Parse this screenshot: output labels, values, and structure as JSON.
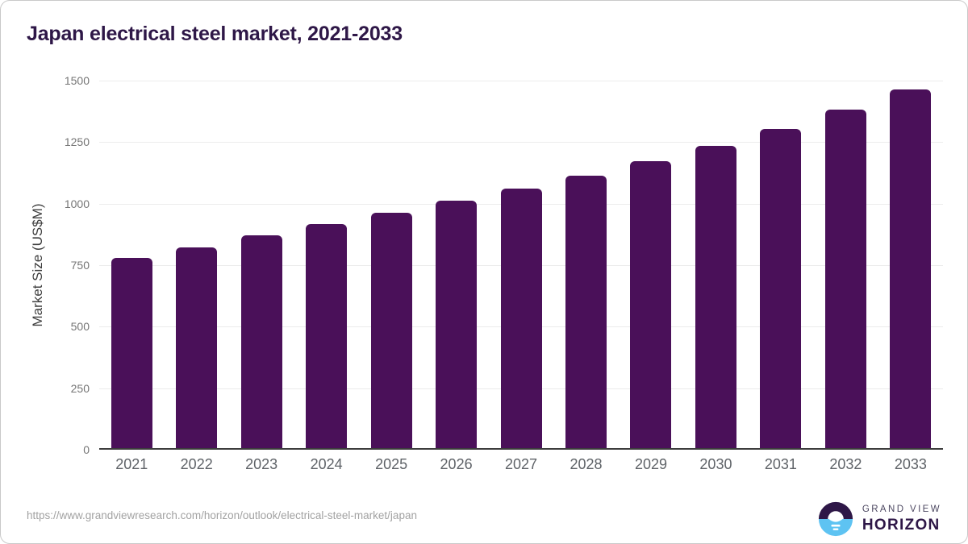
{
  "title": "Japan electrical steel market, 2021-2033",
  "chart_data": {
    "type": "bar",
    "title": "Japan electrical steel market, 2021-2033",
    "categories": [
      "2021",
      "2022",
      "2023",
      "2024",
      "2025",
      "2026",
      "2027",
      "2028",
      "2029",
      "2030",
      "2031",
      "2032",
      "2033"
    ],
    "values": [
      772,
      817,
      865,
      909,
      955,
      1005,
      1055,
      1108,
      1166,
      1228,
      1296,
      1375,
      1458
    ],
    "xlabel": "",
    "ylabel": "Market Size (US$M)",
    "ylim": [
      0,
      1500
    ],
    "yticks": [
      0,
      250,
      500,
      750,
      1000,
      1250,
      1500
    ],
    "grid": true,
    "legend": "none",
    "bar_color": "#4a1059"
  },
  "footer": {
    "source_url": "https://www.grandviewresearch.com/horizon/outlook/electrical-steel-market/japan",
    "logo": {
      "line1": "GRAND VIEW",
      "line2": "HORIZON"
    }
  },
  "colors": {
    "bar": "#4a1059",
    "title_text": "#2e1747",
    "gridline": "#ececec",
    "axis_line": "#3d3d3d",
    "y_tick_text": "#757575",
    "x_tick_text": "#5f6368",
    "url_text": "#a2a2a2",
    "logo_blue": "#5ec3f2",
    "logo_dark": "#2e1747"
  }
}
